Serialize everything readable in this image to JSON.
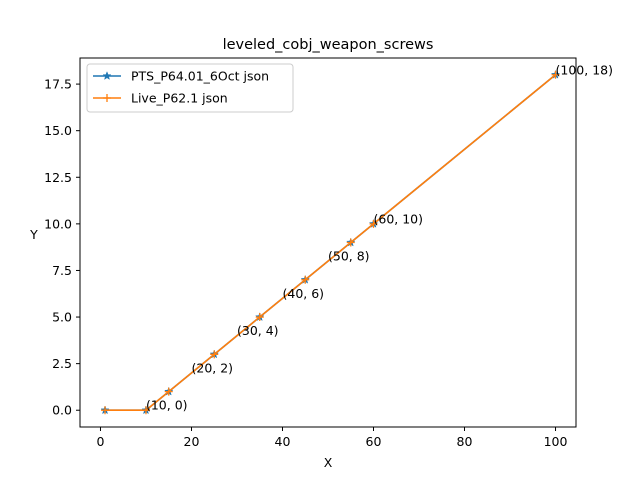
{
  "chart_data": {
    "type": "line",
    "title": "leveled_cobj_weapon_screws",
    "xlabel": "X",
    "ylabel": "Y",
    "xlim": [
      -4.5,
      104.5
    ],
    "ylim": [
      -0.9,
      18.9
    ],
    "xticks": [
      0,
      20,
      40,
      60,
      80,
      100
    ],
    "yticks": [
      0.0,
      2.5,
      5.0,
      7.5,
      10.0,
      12.5,
      15.0,
      17.5
    ],
    "xtick_labels": [
      "0",
      "20",
      "40",
      "60",
      "80",
      "100"
    ],
    "ytick_labels": [
      "0.0",
      "2.5",
      "5.0",
      "7.5",
      "10.0",
      "12.5",
      "15.0",
      "17.5"
    ],
    "grid": false,
    "legend_position": "upper-left",
    "series": [
      {
        "name": "PTS_P64.01_6Oct json",
        "color": "#1f77b4",
        "marker": "star",
        "x": [
          1,
          10,
          15,
          25,
          35,
          45,
          55,
          60,
          100
        ],
        "y": [
          0,
          0,
          1,
          3,
          5,
          7,
          9,
          10,
          18
        ]
      },
      {
        "name": "Live_P62.1 json",
        "color": "#ff7f0e",
        "marker": "plus",
        "x": [
          1,
          10,
          15,
          25,
          35,
          45,
          55,
          60,
          100
        ],
        "y": [
          0,
          0,
          1,
          3,
          5,
          7,
          9,
          10,
          18
        ]
      }
    ],
    "annotations": [
      {
        "x": 10,
        "y": 0,
        "text": "(10, 0)"
      },
      {
        "x": 20,
        "y": 2,
        "text": "(20, 2)"
      },
      {
        "x": 30,
        "y": 4,
        "text": "(30, 4)"
      },
      {
        "x": 40,
        "y": 6,
        "text": "(40, 6)"
      },
      {
        "x": 50,
        "y": 8,
        "text": "(50, 8)"
      },
      {
        "x": 60,
        "y": 10,
        "text": "(60, 10)"
      },
      {
        "x": 100,
        "y": 18,
        "text": "(100, 18)"
      }
    ]
  }
}
